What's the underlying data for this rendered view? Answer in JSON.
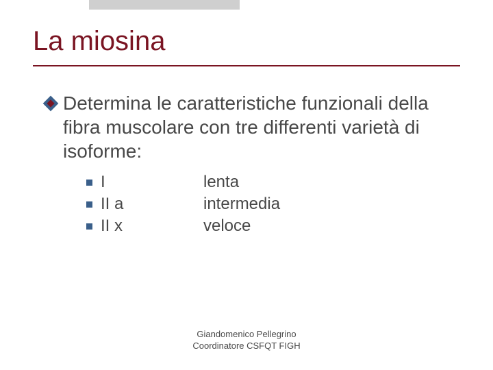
{
  "title": "La miosina",
  "main_text": "Determina le caratteristiche funzionali della fibra muscolare con tre differenti varietà di isoforme:",
  "sub_items": [
    {
      "label": "I",
      "desc": "lenta"
    },
    {
      "label": "II a",
      "desc": "intermedia"
    },
    {
      "label": "II x",
      "desc": "veloce"
    }
  ],
  "footer_line1": "Giandomenico Pellegrino",
  "footer_line2": "Coordinatore CSFQT FIGH",
  "colors": {
    "title": "#7a1422",
    "underline": "#7a1422",
    "body_text": "#484848",
    "diamond_outer": "#3a5f8a",
    "diamond_inner": "#7a1422",
    "square": "#3a5f8a",
    "shadow": "#cfcfcf",
    "background": "#ffffff"
  },
  "fonts": {
    "title_size": 40,
    "main_size": 28,
    "sub_size": 24,
    "footer_size": 13
  }
}
